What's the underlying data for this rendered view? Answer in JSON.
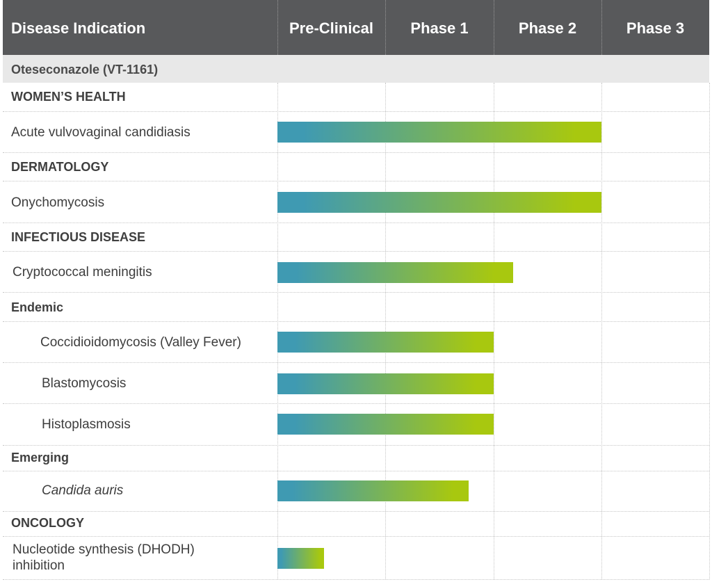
{
  "header": {
    "indication": "Disease Indication",
    "phases": [
      "Pre-Clinical",
      "Phase 1",
      "Phase 2",
      "Phase 3"
    ]
  },
  "drug": {
    "name": "Oteseconazole (VT-1161)"
  },
  "categories": [
    {
      "id": "womens-health",
      "label": "WOMEN’S HEALTH"
    },
    {
      "id": "dermatology",
      "label": "DERMATOLOGY"
    },
    {
      "id": "infectious-disease",
      "label": "INFECTIOUS DISEASE"
    },
    {
      "id": "endemic",
      "label": "Endemic"
    },
    {
      "id": "emerging",
      "label": "Emerging"
    },
    {
      "id": "oncology",
      "label": "ONCOLOGY"
    }
  ],
  "colors": {
    "bar_start": "#3f9ab2",
    "bar_end": "#a8c80f",
    "header_bg": "#58595b",
    "drug_bg": "#e8e8e8"
  },
  "chart_data": {
    "type": "bar",
    "orientation": "horizontal",
    "stage_axis": [
      "Pre-Clinical",
      "Phase 1",
      "Phase 2",
      "Phase 3"
    ],
    "rows": [
      {
        "category": "WOMEN’S HEALTH",
        "indication": "Acute vulvovaginal candidiasis",
        "progress": 3.0
      },
      {
        "category": "DERMATOLOGY",
        "indication": "Onychomycosis",
        "progress": 3.0
      },
      {
        "category": "INFECTIOUS DISEASE",
        "indication": "Cryptococcal meningitis",
        "progress": 2.18
      },
      {
        "category": "Endemic",
        "indication": "Coccidioidomycosis (Valley Fever)",
        "progress": 2.0
      },
      {
        "category": "Endemic",
        "indication": "Blastomycosis",
        "progress": 2.0
      },
      {
        "category": "Endemic",
        "indication": "Histoplasmosis",
        "progress": 2.0
      },
      {
        "category": "Emerging",
        "indication": "Candida auris",
        "progress": 1.77
      },
      {
        "category": "ONCOLOGY",
        "indication": "Nucleotide synthesis (DHODH) inhibition",
        "progress": 0.43
      }
    ]
  }
}
